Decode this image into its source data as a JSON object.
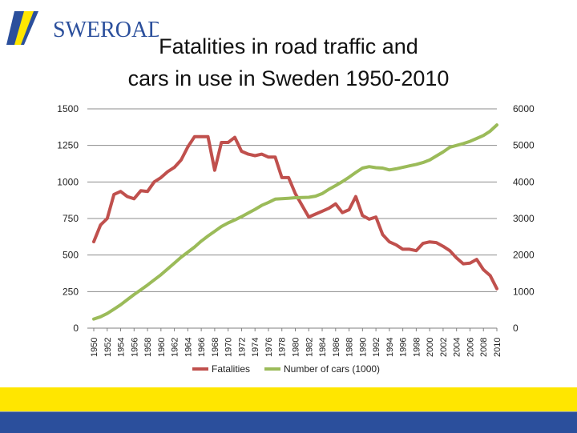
{
  "brand": {
    "name": "SWEROAD",
    "colors": {
      "blue": "#2b4f9c",
      "yellow": "#ffe600"
    }
  },
  "slide": {
    "title_line1": "Fatalities in road traffic and",
    "title_line2": "cars in use in Sweden 1950-2010"
  },
  "chart_data": {
    "type": "line",
    "title": "Fatalities in road traffic and cars in use in Sweden 1950-2010",
    "xlabel": "",
    "ylabel_left": "",
    "ylabel_right": "",
    "x": [
      1950,
      1951,
      1952,
      1953,
      1954,
      1955,
      1956,
      1957,
      1958,
      1959,
      1960,
      1961,
      1962,
      1963,
      1964,
      1965,
      1966,
      1967,
      1968,
      1969,
      1970,
      1971,
      1972,
      1973,
      1974,
      1975,
      1976,
      1977,
      1978,
      1979,
      1980,
      1981,
      1982,
      1983,
      1984,
      1985,
      1986,
      1987,
      1988,
      1989,
      1990,
      1991,
      1992,
      1993,
      1994,
      1995,
      1996,
      1997,
      1998,
      1999,
      2000,
      2001,
      2002,
      2003,
      2004,
      2005,
      2006,
      2007,
      2008,
      2009,
      2010
    ],
    "x_tick_labels": [
      "1950",
      "1952",
      "1954",
      "1956",
      "1958",
      "1960",
      "1962",
      "1964",
      "1966",
      "1968",
      "1970",
      "1972",
      "1974",
      "1976",
      "1978",
      "1980",
      "1982",
      "1984",
      "1986",
      "1988",
      "1990",
      "1992",
      "1994",
      "1996",
      "1998",
      "2000",
      "2002",
      "2004",
      "2006",
      "2008",
      "2010"
    ],
    "y_left_ticks": [
      0,
      250,
      500,
      750,
      1000,
      1250,
      1500
    ],
    "y_right_ticks": [
      0,
      1000,
      2000,
      3000,
      4000,
      5000,
      6000
    ],
    "ylim_left": [
      0,
      1500
    ],
    "ylim_right": [
      0,
      6000
    ],
    "grid": true,
    "legend_position": "bottom",
    "series": [
      {
        "name": "Fatalities",
        "axis": "left",
        "color": "#c0504d",
        "values": [
          591,
          705,
          750,
          915,
          935,
          900,
          885,
          940,
          935,
          1000,
          1030,
          1070,
          1100,
          1150,
          1240,
          1310,
          1310,
          1310,
          1080,
          1270,
          1270,
          1305,
          1210,
          1190,
          1180,
          1190,
          1170,
          1170,
          1030,
          1030,
          920,
          840,
          760,
          780,
          800,
          820,
          850,
          790,
          810,
          900,
          770,
          745,
          760,
          640,
          590,
          570,
          540,
          540,
          530,
          580,
          590,
          585,
          560,
          530,
          480,
          440,
          445,
          470,
          400,
          360,
          270
        ]
      },
      {
        "name": "Number of cars (1000)",
        "axis": "right",
        "color": "#9bbb59",
        "values": [
          250,
          310,
          400,
          520,
          640,
          780,
          920,
          1050,
          1180,
          1320,
          1460,
          1620,
          1780,
          1940,
          2080,
          2220,
          2380,
          2520,
          2650,
          2780,
          2880,
          2960,
          3050,
          3150,
          3250,
          3360,
          3440,
          3530,
          3540,
          3555,
          3570,
          3575,
          3580,
          3610,
          3680,
          3800,
          3900,
          4010,
          4130,
          4260,
          4380,
          4420,
          4390,
          4380,
          4330,
          4360,
          4400,
          4440,
          4480,
          4530,
          4600,
          4710,
          4820,
          4950,
          5000,
          5050,
          5110,
          5190,
          5270,
          5390,
          5560
        ]
      }
    ]
  }
}
